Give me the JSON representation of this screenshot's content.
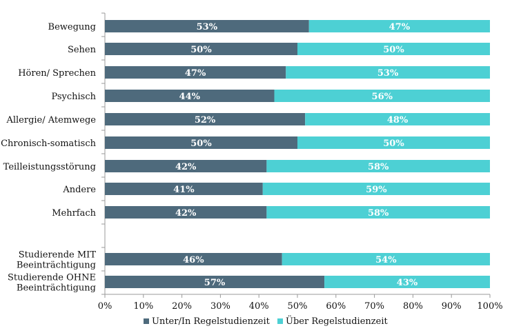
{
  "chart_data": {
    "type": "bar",
    "orientation": "horizontal",
    "stacked": true,
    "categories": [
      "Bewegung",
      "Sehen",
      "Hören/ Sprechen",
      "Psychisch",
      "Allergie/ Atemwege",
      "Chronisch-somatisch",
      "Teilleistungsstörung",
      "Andere",
      "Mehrfach",
      [
        "Studierende MIT",
        "Beeinträchtigung"
      ],
      [
        "Studierende OHNE",
        "Beeinträchtigung"
      ]
    ],
    "series": [
      {
        "name": "Unter/In Regelstudienzeit",
        "color": "#4e6a7c",
        "values": [
          53,
          50,
          47,
          44,
          52,
          50,
          42,
          41,
          42,
          46,
          57
        ],
        "labels": [
          "53%",
          "50%",
          "47%",
          "44%",
          "52%",
          "50%",
          "42%",
          "41%",
          "42%",
          "46%",
          "57%"
        ]
      },
      {
        "name": "Über Regelstudienzeit",
        "color": "#4dd0d4",
        "values": [
          47,
          50,
          53,
          56,
          48,
          50,
          58,
          59,
          58,
          54,
          43
        ],
        "labels": [
          "47%",
          "50%",
          "53%",
          "56%",
          "48%",
          "50%",
          "58%",
          "59%",
          "58%",
          "54%",
          "43%"
        ]
      }
    ],
    "x_ticks": [
      "0%",
      "10%",
      "20%",
      "30%",
      "40%",
      "50%",
      "60%",
      "70%",
      "80%",
      "90%",
      "100%"
    ],
    "xlim": [
      0,
      100
    ],
    "grid": false,
    "legend_position": "bottom",
    "title": "",
    "xlabel": "",
    "ylabel": ""
  }
}
